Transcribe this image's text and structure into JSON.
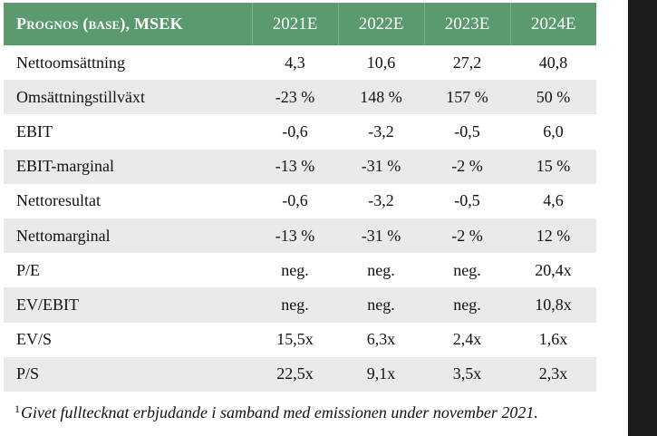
{
  "table": {
    "title": "Prognos (base), MSEK",
    "columns": [
      "2021E",
      "2022E",
      "2023E",
      "2024E"
    ],
    "rows": [
      {
        "label": "Nettoomsättning",
        "values": [
          "4,3",
          "10,6",
          "27,2",
          "40,8"
        ]
      },
      {
        "label": "Omsättningstillväxt",
        "values": [
          "-23 %",
          "148 %",
          "157 %",
          "50 %"
        ]
      },
      {
        "label": "EBIT",
        "values": [
          "-0,6",
          "-3,2",
          "-0,5",
          "6,0"
        ]
      },
      {
        "label": "EBIT-marginal",
        "values": [
          "-13 %",
          "-31 %",
          "-2 %",
          "15 %"
        ]
      },
      {
        "label": "Nettoresultat",
        "values": [
          "-0,6",
          "-3,2",
          "-0,5",
          "4,6"
        ]
      },
      {
        "label": "Nettomarginal",
        "values": [
          "-13 %",
          "-31 %",
          "-2 %",
          "12 %"
        ]
      },
      {
        "label": "P/E",
        "values": [
          "neg.",
          "neg.",
          "neg.",
          "20,4x"
        ]
      },
      {
        "label": "EV/EBIT",
        "values": [
          "neg.",
          "neg.",
          "neg.",
          "10,8x"
        ]
      },
      {
        "label": "EV/S",
        "values": [
          "15,5x",
          "6,3x",
          "2,4x",
          "1,6x"
        ]
      },
      {
        "label": "P/S",
        "values": [
          "22,5x",
          "9,1x",
          "3,5x",
          "2,3x"
        ]
      }
    ]
  },
  "footnote": {
    "marker": "1",
    "text": "Givet fulltecknat erbjudande i samband med emissionen under november 2021."
  },
  "colors": {
    "header_background": "#5a9a6e",
    "header_text": "#ffffff",
    "stripe_row": "#eaeaea",
    "right_edge": "#1b1b1b"
  }
}
